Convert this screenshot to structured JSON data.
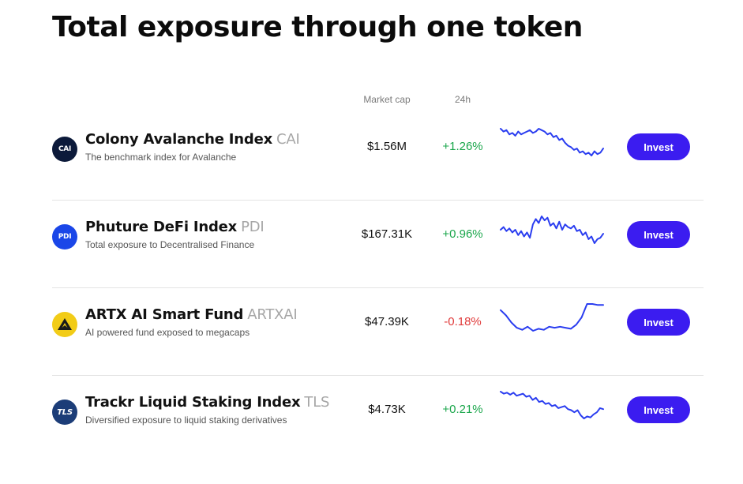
{
  "page": {
    "title": "Total exposure through one token"
  },
  "table": {
    "headers": {
      "market_cap": "Market cap",
      "change_24h": "24h"
    },
    "rows": [
      {
        "name": "Colony Avalanche Index",
        "ticker": "CAI",
        "description": "The benchmark index for Avalanche",
        "market_cap": "$1.56M",
        "change_24h": "+1.26%",
        "direction": "up",
        "invest_label": "Invest",
        "logo_text": "CAI",
        "logo_color": "#0c1a3a",
        "sparkline": [
          10,
          12,
          11,
          14,
          13,
          15,
          12,
          14,
          13,
          12,
          11,
          13,
          12,
          10,
          11,
          12,
          14,
          13,
          16,
          15,
          18,
          17,
          20,
          22,
          23,
          25,
          24,
          27,
          26,
          28,
          27,
          29,
          26,
          28,
          27,
          24
        ]
      },
      {
        "name": "Phuture DeFi Index",
        "ticker": "PDI",
        "description": "Total exposure to Decentralised Finance",
        "market_cap": "$167.31K",
        "change_24h": "+0.96%",
        "direction": "up",
        "invest_label": "Invest",
        "logo_text": "PDI",
        "logo_color": "#1a46e8",
        "sparkline": [
          18,
          16,
          19,
          17,
          20,
          18,
          22,
          19,
          23,
          20,
          24,
          14,
          10,
          13,
          8,
          11,
          9,
          15,
          13,
          17,
          12,
          18,
          14,
          16,
          17,
          15,
          19,
          18,
          22,
          20,
          25,
          23,
          28,
          25,
          24,
          21
        ]
      },
      {
        "name": "ARTX AI Smart Fund",
        "ticker": "ARTXAI",
        "description": "AI powered fund exposed to megacaps",
        "market_cap": "$47.39K",
        "change_24h": "-0.18%",
        "direction": "down",
        "invest_label": "Invest",
        "logo_text": "",
        "logo_color": "#f2cc17",
        "sparkline": [
          8,
          13,
          20,
          25,
          27,
          24,
          28,
          26,
          27,
          24,
          25,
          24,
          25,
          26,
          22,
          15,
          2,
          2,
          3,
          3
        ]
      },
      {
        "name": "Trackr Liquid Staking Index",
        "ticker": "TLS",
        "description": "Diversified exposure to liquid staking derivatives",
        "market_cap": "$4.73K",
        "change_24h": "+0.21%",
        "direction": "up",
        "invest_label": "Invest",
        "logo_text": "TLS",
        "logo_color": "#1c3d78",
        "sparkline": [
          4,
          6,
          5,
          7,
          5,
          8,
          7,
          6,
          9,
          8,
          12,
          10,
          14,
          13,
          16,
          15,
          18,
          17,
          20,
          19,
          18,
          21,
          22,
          24,
          22,
          27,
          30,
          28,
          29,
          26,
          24,
          20,
          21
        ]
      }
    ]
  },
  "colors": {
    "invest_button": "#3b1cf0",
    "sparkline": "#2a3df0",
    "positive": "#1aa64b",
    "negative": "#e03a3a"
  },
  "icons": {
    "artx_logo": "artx-triangle-icon"
  }
}
